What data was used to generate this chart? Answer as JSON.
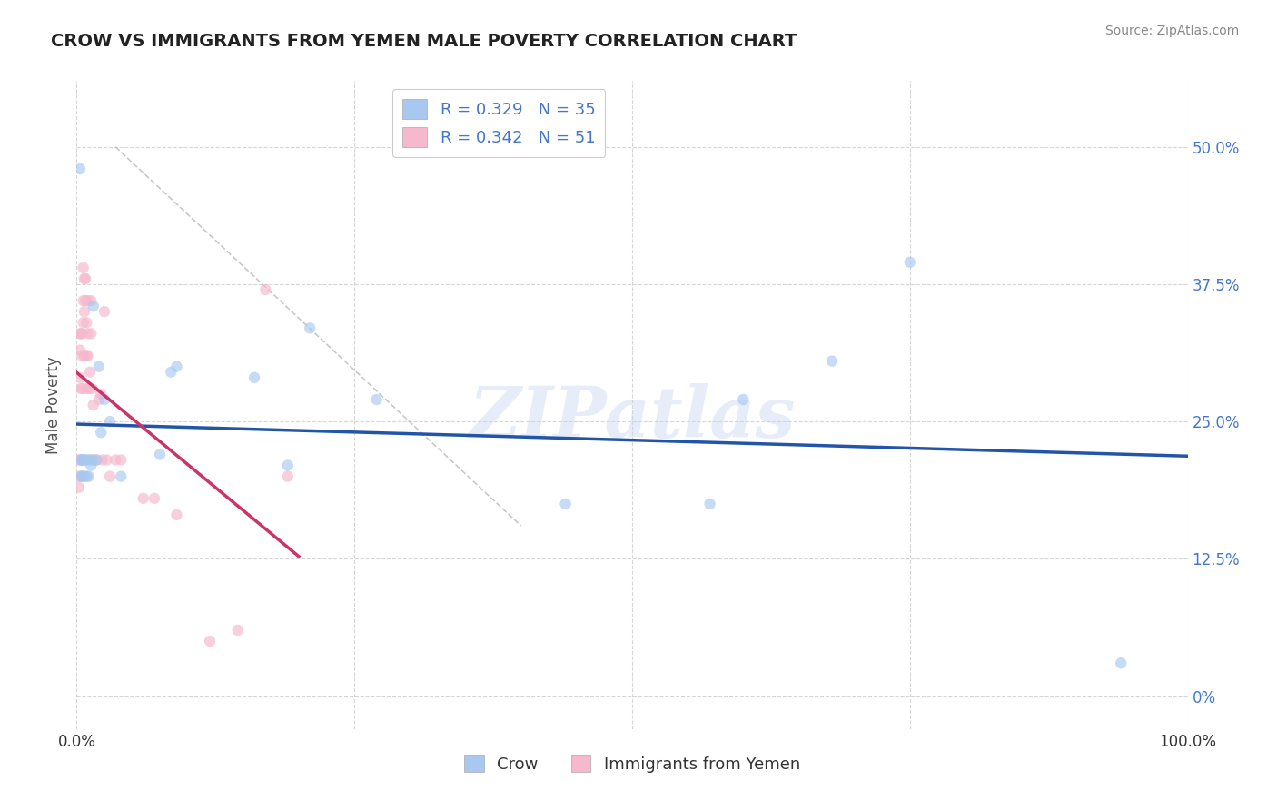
{
  "title": "CROW VS IMMIGRANTS FROM YEMEN MALE POVERTY CORRELATION CHART",
  "source": "Source: ZipAtlas.com",
  "ylabel": "Male Poverty",
  "xlabel": "",
  "watermark": "ZIPatlas",
  "legend_crow": {
    "R": 0.329,
    "N": 35
  },
  "legend_yemen": {
    "R": 0.342,
    "N": 51
  },
  "crow_color": "#a8c8f0",
  "crow_color_line": "#2255aa",
  "yemen_color": "#f5b8cc",
  "yemen_color_line": "#cc3366",
  "crow_scatter_x": [
    0.003,
    0.004,
    0.004,
    0.005,
    0.005,
    0.006,
    0.007,
    0.007,
    0.008,
    0.009,
    0.01,
    0.011,
    0.012,
    0.013,
    0.014,
    0.015,
    0.018,
    0.02,
    0.022,
    0.025,
    0.03,
    0.04,
    0.075,
    0.085,
    0.09,
    0.16,
    0.19,
    0.21,
    0.27,
    0.44,
    0.57,
    0.6,
    0.68,
    0.75,
    0.94
  ],
  "crow_scatter_y": [
    0.48,
    0.215,
    0.2,
    0.215,
    0.2,
    0.215,
    0.215,
    0.2,
    0.215,
    0.2,
    0.215,
    0.2,
    0.215,
    0.21,
    0.215,
    0.355,
    0.215,
    0.3,
    0.24,
    0.27,
    0.25,
    0.2,
    0.22,
    0.295,
    0.3,
    0.29,
    0.21,
    0.335,
    0.27,
    0.175,
    0.175,
    0.27,
    0.305,
    0.395,
    0.03
  ],
  "yemen_scatter_x": [
    0.002,
    0.002,
    0.002,
    0.003,
    0.003,
    0.003,
    0.003,
    0.004,
    0.004,
    0.005,
    0.005,
    0.005,
    0.005,
    0.005,
    0.006,
    0.006,
    0.006,
    0.007,
    0.007,
    0.007,
    0.008,
    0.008,
    0.009,
    0.009,
    0.009,
    0.01,
    0.01,
    0.01,
    0.011,
    0.012,
    0.013,
    0.013,
    0.014,
    0.015,
    0.016,
    0.018,
    0.02,
    0.022,
    0.023,
    0.025,
    0.027,
    0.03,
    0.035,
    0.04,
    0.06,
    0.07,
    0.09,
    0.12,
    0.145,
    0.17,
    0.19
  ],
  "yemen_scatter_y": [
    0.215,
    0.2,
    0.19,
    0.33,
    0.315,
    0.29,
    0.215,
    0.33,
    0.28,
    0.33,
    0.31,
    0.28,
    0.215,
    0.2,
    0.39,
    0.36,
    0.34,
    0.38,
    0.35,
    0.31,
    0.38,
    0.36,
    0.34,
    0.31,
    0.28,
    0.36,
    0.33,
    0.31,
    0.28,
    0.295,
    0.36,
    0.33,
    0.28,
    0.265,
    0.215,
    0.215,
    0.27,
    0.275,
    0.215,
    0.35,
    0.215,
    0.2,
    0.215,
    0.215,
    0.18,
    0.18,
    0.165,
    0.05,
    0.06,
    0.37,
    0.2
  ],
  "xlim": [
    0.0,
    1.0
  ],
  "ylim": [
    -0.03,
    0.56
  ],
  "xticks": [
    0.0,
    0.25,
    0.5,
    0.75,
    1.0
  ],
  "xtick_labels_left": [
    "0.0%",
    "",
    "",
    "",
    ""
  ],
  "xtick_labels_right": [
    "",
    "",
    "",
    "",
    "100.0%"
  ],
  "yticks": [
    0.0,
    0.125,
    0.25,
    0.375,
    0.5
  ],
  "ytick_labels": [
    "0%",
    "12.5%",
    "25.0%",
    "37.5%",
    "50.0%"
  ],
  "grid_color": "#cccccc",
  "background_color": "#ffffff",
  "title_color": "#222222",
  "axis_label_color": "#555555",
  "tick_label_color_x": "#333333",
  "tick_label_color_y": "#4477cc",
  "marker_size": 80,
  "marker_alpha": 0.65,
  "line_width": 2.5,
  "diag_line_x": [
    0.035,
    0.4
  ],
  "diag_line_y": [
    0.5,
    0.155
  ]
}
